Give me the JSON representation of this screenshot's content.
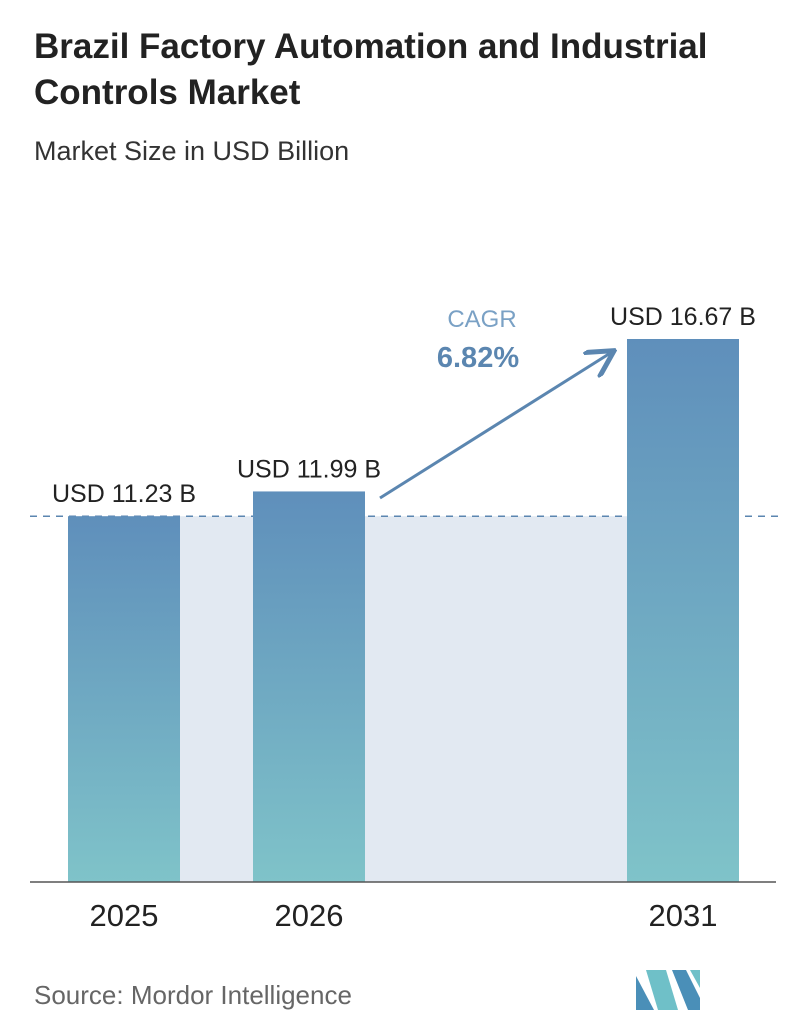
{
  "header": {
    "title": "Brazil Factory Automation and Industrial Controls Market",
    "subtitle": "Market Size in USD Billion"
  },
  "chart_data": {
    "type": "bar",
    "categories": [
      "2025",
      "2026",
      "2031"
    ],
    "values": [
      11.23,
      11.99,
      16.67
    ],
    "value_labels": [
      "USD 11.23 B",
      "USD 11.99 B",
      "USD 16.67 B"
    ],
    "title": "Brazil Factory Automation and Industrial Controls Market",
    "subtitle": "Market Size in USD Billion",
    "xlabel": "",
    "ylabel": "",
    "ylim": [
      0,
      16.67
    ],
    "grid": false,
    "reference_line": {
      "value": 11.23,
      "style": "dashed"
    },
    "annotation": {
      "label": "CAGR",
      "value": "6.82%"
    },
    "colors": {
      "bar_top": "#5f8fbb",
      "bar_bottom": "#7fc3c9",
      "band": "#e2e9f2",
      "accent": "#5b86b0",
      "cagr_label": "#7aa1c5"
    }
  },
  "footer": {
    "source": "Source:  Mordor Intelligence",
    "logo_icon": "mordor-intelligence-logo-icon"
  }
}
